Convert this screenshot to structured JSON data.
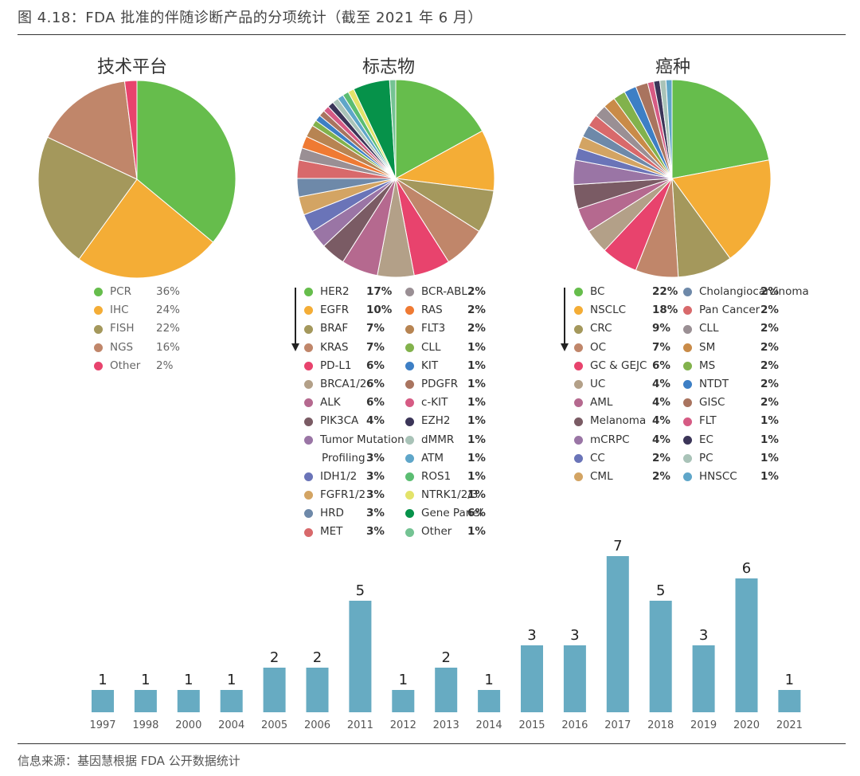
{
  "figure": {
    "title": "图 4.18：FDA 批准的伴随诊断产品的分项统计（截至 2021 年 6 月）",
    "source": "信息来源：基因慧根据 FDA 公开数据统计"
  },
  "colors": {
    "green": "#66bd4c",
    "orange": "#f4ad36",
    "olive": "#a4985c",
    "terracotta": "#c0866a",
    "red": "#e8436d",
    "tan": "#b3a088",
    "mauve": "#b5698f",
    "plum": "#7a5b64",
    "purple": "#9a75a5",
    "indigo": "#6a74b8",
    "sand": "#d3a463",
    "steel": "#6e89a9",
    "coral": "#d8696b",
    "grey": "#9a8f94",
    "brightorange": "#ef7a33",
    "brown": "#b78452",
    "lightgreen": "#82b24c",
    "blue": "#3d7fc5",
    "sienna": "#a9745f",
    "pink": "#d65b84",
    "navy": "#3b3558",
    "sage": "#a9c3b8",
    "sky": "#5fa6c9",
    "mint": "#5bbd72",
    "yellow": "#e3e36a",
    "darkgreen": "#06924a",
    "lightmint": "#74c393",
    "bar": "#67abc2"
  },
  "chart_data": [
    {
      "type": "pie",
      "title": "技术平台",
      "slices": [
        {
          "label": "PCR",
          "value": 36,
          "display": "36%",
          "color": "#66bd4c"
        },
        {
          "label": "IHC",
          "value": 24,
          "display": "24%",
          "color": "#f4ad36"
        },
        {
          "label": "FISH",
          "value": 22,
          "display": "22%",
          "color": "#a4985c"
        },
        {
          "label": "NGS",
          "value": 16,
          "display": "16%",
          "color": "#c0866a"
        },
        {
          "label": "Other",
          "value": 2,
          "display": "2%",
          "color": "#e8436d"
        }
      ]
    },
    {
      "type": "pie",
      "title": "标志物",
      "slices": [
        {
          "label": "HER2",
          "value": 17,
          "display": "17%",
          "color": "#66bd4c"
        },
        {
          "label": "EGFR",
          "value": 10,
          "display": "10%",
          "color": "#f4ad36"
        },
        {
          "label": "BRAF",
          "value": 7,
          "display": "7%",
          "color": "#a4985c"
        },
        {
          "label": "KRAS",
          "value": 7,
          "display": "7%",
          "color": "#c0866a"
        },
        {
          "label": "PD-L1",
          "value": 6,
          "display": "6%",
          "color": "#e8436d"
        },
        {
          "label": "BRCA1/2",
          "value": 6,
          "display": "6%",
          "color": "#b3a088"
        },
        {
          "label": "ALK",
          "value": 6,
          "display": "6%",
          "color": "#b5698f"
        },
        {
          "label": "PIK3CA",
          "value": 4,
          "display": "4%",
          "color": "#7a5b64"
        },
        {
          "label": "Tumor Mutation",
          "label2": "Profiling",
          "value": 3,
          "display": "3%",
          "color": "#9a75a5"
        },
        {
          "label": "IDH1/2",
          "value": 3,
          "display": "3%",
          "color": "#6a74b8"
        },
        {
          "label": "FGFR1/2",
          "value": 3,
          "display": "3%",
          "color": "#d3a463"
        },
        {
          "label": "HRD",
          "value": 3,
          "display": "3%",
          "color": "#6e89a9"
        },
        {
          "label": "MET",
          "value": 3,
          "display": "3%",
          "color": "#d8696b"
        },
        {
          "label": "BCR-ABL",
          "value": 2,
          "display": "2%",
          "color": "#9a8f94"
        },
        {
          "label": "RAS",
          "value": 2,
          "display": "2%",
          "color": "#ef7a33"
        },
        {
          "label": "FLT3",
          "value": 2,
          "display": "2%",
          "color": "#b78452"
        },
        {
          "label": "CLL",
          "value": 1,
          "display": "1%",
          "color": "#82b24c"
        },
        {
          "label": "KIT",
          "value": 1,
          "display": "1%",
          "color": "#3d7fc5"
        },
        {
          "label": "PDGFR",
          "value": 1,
          "display": "1%",
          "color": "#a9745f"
        },
        {
          "label": "c-KIT",
          "value": 1,
          "display": "1%",
          "color": "#d65b84"
        },
        {
          "label": "EZH2",
          "value": 1,
          "display": "1%",
          "color": "#3b3558"
        },
        {
          "label": "dMMR",
          "value": 1,
          "display": "1%",
          "color": "#a9c3b8"
        },
        {
          "label": "ATM",
          "value": 1,
          "display": "1%",
          "color": "#5fa6c9"
        },
        {
          "label": "ROS1",
          "value": 1,
          "display": "1%",
          "color": "#5bbd72"
        },
        {
          "label": "NTRK1/2/3",
          "value": 1,
          "display": "1%",
          "color": "#e3e36a"
        },
        {
          "label": "Gene Panel",
          "value": 6,
          "display": "6%",
          "color": "#06924a"
        },
        {
          "label": "Other",
          "value": 1,
          "display": "1%",
          "color": "#74c393"
        }
      ]
    },
    {
      "type": "pie",
      "title": "癌种",
      "slices": [
        {
          "label": "BC",
          "value": 22,
          "display": "22%",
          "color": "#66bd4c"
        },
        {
          "label": "NSCLC",
          "value": 18,
          "display": "18%",
          "color": "#f4ad36"
        },
        {
          "label": "CRC",
          "value": 9,
          "display": "9%",
          "color": "#a4985c"
        },
        {
          "label": "OC",
          "value": 7,
          "display": "7%",
          "color": "#c0866a"
        },
        {
          "label": "GC & GEJC",
          "value": 6,
          "display": "6%",
          "color": "#e8436d"
        },
        {
          "label": "UC",
          "value": 4,
          "display": "4%",
          "color": "#b3a088"
        },
        {
          "label": "AML",
          "value": 4,
          "display": "4%",
          "color": "#b5698f"
        },
        {
          "label": "Melanoma",
          "value": 4,
          "display": "4%",
          "color": "#7a5b64"
        },
        {
          "label": "mCRPC",
          "value": 4,
          "display": "4%",
          "color": "#9a75a5"
        },
        {
          "label": "CC",
          "value": 2,
          "display": "2%",
          "color": "#6a74b8"
        },
        {
          "label": "CML",
          "value": 2,
          "display": "2%",
          "color": "#d3a463"
        },
        {
          "label": "Cholangiocarcinoma",
          "value": 2,
          "display": "2%",
          "color": "#6e89a9"
        },
        {
          "label": "Pan Cancer",
          "value": 2,
          "display": "2%",
          "color": "#d8696b"
        },
        {
          "label": "CLL",
          "value": 2,
          "display": "2%",
          "color": "#9a8f94"
        },
        {
          "label": "SM",
          "value": 2,
          "display": "2%",
          "color": "#c98b48"
        },
        {
          "label": "MS",
          "value": 2,
          "display": "2%",
          "color": "#82b24c"
        },
        {
          "label": "NTDT",
          "value": 2,
          "display": "2%",
          "color": "#3d7fc5"
        },
        {
          "label": "GISC",
          "value": 2,
          "display": "2%",
          "color": "#a9745f"
        },
        {
          "label": "FLT",
          "value": 1,
          "display": "1%",
          "color": "#d65b84"
        },
        {
          "label": "EC",
          "value": 1,
          "display": "1%",
          "color": "#3b3558"
        },
        {
          "label": "PC",
          "value": 1,
          "display": "1%",
          "color": "#a9c3b8"
        },
        {
          "label": "HNSCC",
          "value": 1,
          "display": "1%",
          "color": "#5fa6c9"
        }
      ]
    },
    {
      "type": "bar",
      "title": "",
      "categories": [
        "1997",
        "1998",
        "2000",
        "2004",
        "2005",
        "2006",
        "2011",
        "2012",
        "2013",
        "2014",
        "2015",
        "2016",
        "2017",
        "2018",
        "2019",
        "2020",
        "2021"
      ],
      "values": [
        1,
        1,
        1,
        1,
        2,
        2,
        5,
        1,
        2,
        1,
        3,
        3,
        7,
        5,
        3,
        6,
        1
      ],
      "ylim": [
        0,
        7
      ],
      "color": "#67abc2"
    }
  ]
}
